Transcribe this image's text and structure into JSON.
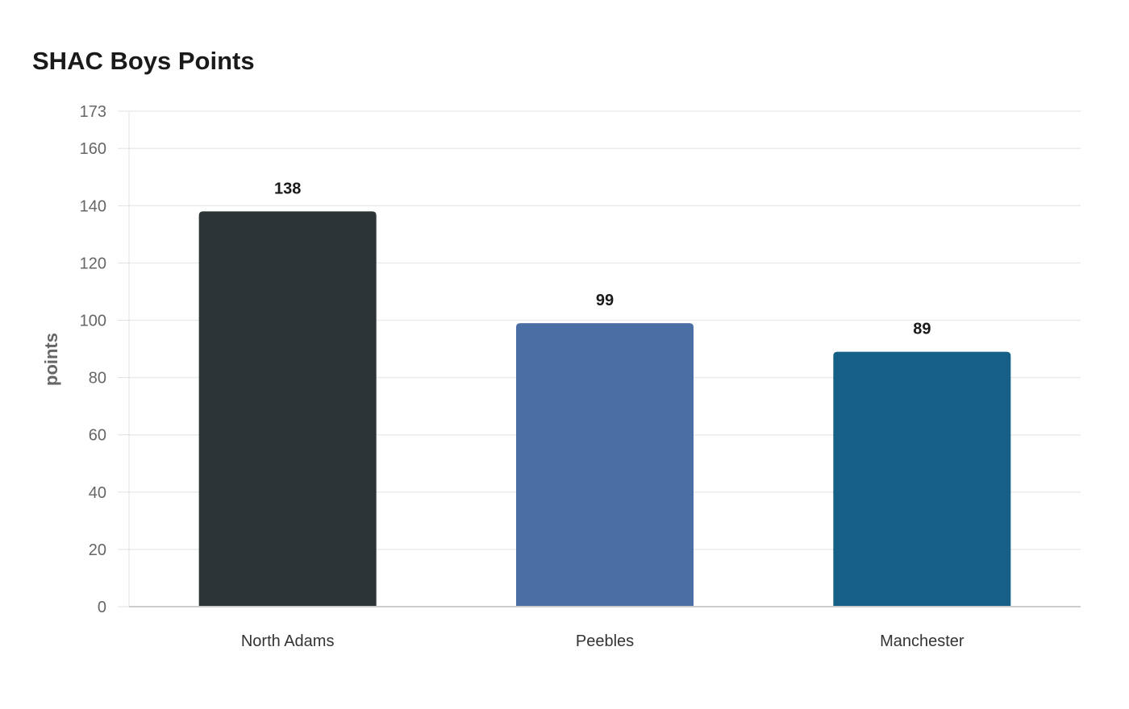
{
  "chart_data": {
    "type": "bar",
    "title": "SHAC Boys Points",
    "xlabel": "",
    "ylabel": "points",
    "categories": [
      "North Adams",
      "Peebles",
      "Manchester"
    ],
    "values": [
      138,
      99,
      89
    ],
    "colors": [
      "#2d3436",
      "#4a6fa5",
      "#166088"
    ],
    "yticks": [
      0,
      20,
      40,
      60,
      80,
      100,
      120,
      140,
      160,
      173
    ],
    "ylim": [
      0,
      173
    ],
    "grid": true,
    "legend": "none"
  }
}
